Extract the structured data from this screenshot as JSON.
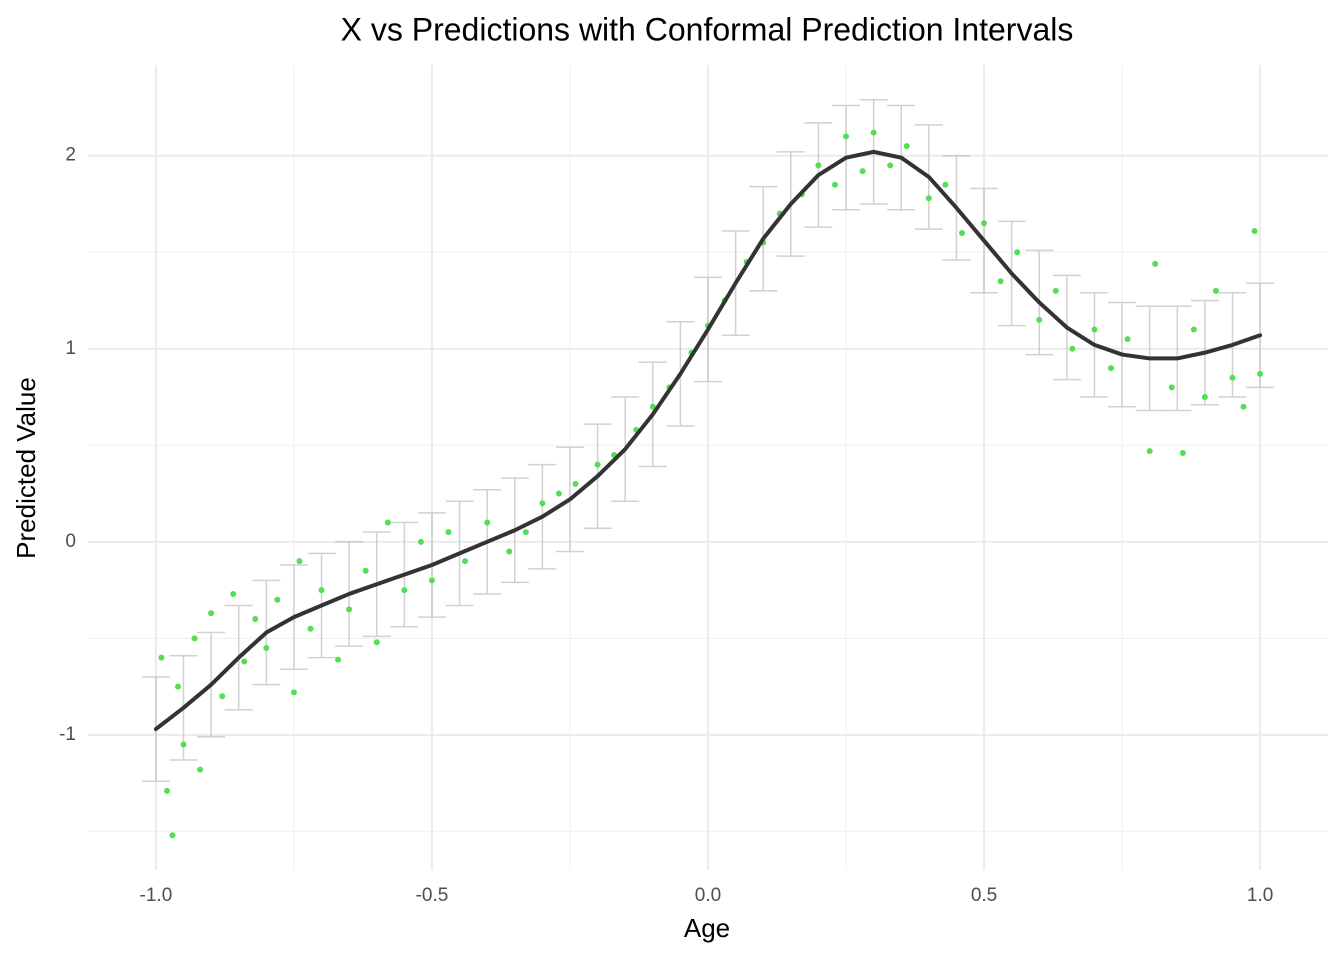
{
  "chart_data": {
    "type": "scatter",
    "title": "X vs Predictions with Conformal Prediction Intervals",
    "x_label": "Age",
    "y_label": "Predicted Value",
    "xlim": [
      -1.123,
      1.123
    ],
    "ylim": [
      -1.7,
      2.47
    ],
    "xticks": [
      {
        "value": -1,
        "label": "-1.0"
      },
      {
        "value": -0.5,
        "label": "-0.5"
      },
      {
        "value": 0,
        "label": "0.0"
      },
      {
        "value": 0.5,
        "label": "0.5"
      },
      {
        "value": 1,
        "label": "1.0"
      }
    ],
    "yticks": [
      -1,
      0,
      1,
      2
    ],
    "x_minor_grid": [
      -0.75,
      -0.25,
      0.25,
      0.75
    ],
    "y_minor_grid": [
      -1.5,
      -0.5,
      0.5,
      1.5
    ],
    "grid": true,
    "fit": {
      "color": "#333333",
      "interval_color": "#bdbdbd",
      "x": [
        -1,
        -0.95,
        -0.9,
        -0.85,
        -0.8,
        -0.75,
        -0.7,
        -0.65,
        -0.6,
        -0.55,
        -0.5,
        -0.45,
        -0.4,
        -0.35,
        -0.3,
        -0.25,
        -0.2,
        -0.15,
        -0.1,
        -0.05,
        0,
        0.05,
        0.1,
        0.15,
        0.2,
        0.25,
        0.3,
        0.35,
        0.4,
        0.45,
        0.5,
        0.55,
        0.6,
        0.65,
        0.7,
        0.75,
        0.8,
        0.85,
        0.9,
        0.95,
        1
      ],
      "values": [
        -0.97,
        -0.86,
        -0.74,
        -0.6,
        -0.47,
        -0.39,
        -0.33,
        -0.27,
        -0.22,
        -0.17,
        -0.12,
        -0.06,
        0,
        0.06,
        0.13,
        0.22,
        0.34,
        0.48,
        0.66,
        0.87,
        1.1,
        1.34,
        1.57,
        1.75,
        1.9,
        1.99,
        2.02,
        1.99,
        1.89,
        1.73,
        1.56,
        1.39,
        1.24,
        1.11,
        1.02,
        0.97,
        0.95,
        0.95,
        0.98,
        1.02,
        1.07
      ],
      "lower": [
        -1.24,
        -1.13,
        -1.01,
        -0.87,
        -0.74,
        -0.66,
        -0.6,
        -0.54,
        -0.49,
        -0.44,
        -0.39,
        -0.33,
        -0.27,
        -0.21,
        -0.14,
        -0.05,
        0.07,
        0.21,
        0.39,
        0.6,
        0.83,
        1.07,
        1.3,
        1.48,
        1.63,
        1.72,
        1.75,
        1.72,
        1.62,
        1.46,
        1.29,
        1.12,
        0.97,
        0.84,
        0.75,
        0.7,
        0.68,
        0.68,
        0.71,
        0.75,
        0.8
      ],
      "upper": [
        -0.7,
        -0.59,
        -0.47,
        -0.33,
        -0.2,
        -0.12,
        -0.06,
        0,
        0.05,
        0.1,
        0.15,
        0.21,
        0.27,
        0.33,
        0.4,
        0.49,
        0.61,
        0.75,
        0.93,
        1.14,
        1.37,
        1.61,
        1.84,
        2.02,
        2.17,
        2.26,
        2.29,
        2.26,
        2.16,
        2,
        1.83,
        1.66,
        1.51,
        1.38,
        1.29,
        1.24,
        1.22,
        1.22,
        1.25,
        1.29,
        1.34
      ]
    },
    "observed": {
      "color": "#55dd55",
      "x": [
        -0.99,
        -0.98,
        -0.97,
        -0.96,
        -0.95,
        -0.93,
        -0.92,
        -0.9,
        -0.88,
        -0.86,
        -0.84,
        -0.82,
        -0.8,
        -0.78,
        -0.75,
        -0.74,
        -0.72,
        -0.7,
        -0.67,
        -0.65,
        -0.62,
        -0.6,
        -0.58,
        -0.55,
        -0.52,
        -0.5,
        -0.47,
        -0.44,
        -0.4,
        -0.36,
        -0.33,
        -0.3,
        -0.27,
        -0.24,
        -0.2,
        -0.17,
        -0.13,
        -0.1,
        -0.07,
        -0.03,
        0,
        0.03,
        0.07,
        0.1,
        0.13,
        0.17,
        0.2,
        0.23,
        0.25,
        0.28,
        0.3,
        0.33,
        0.36,
        0.4,
        0.43,
        0.46,
        0.5,
        0.53,
        0.56,
        0.6,
        0.63,
        0.66,
        0.7,
        0.73,
        0.76,
        0.8,
        0.81,
        0.84,
        0.86,
        0.88,
        0.9,
        0.92,
        0.95,
        0.97,
        0.99,
        1
      ],
      "values": [
        -0.6,
        -1.29,
        -1.52,
        -0.75,
        -1.05,
        -0.5,
        -1.18,
        -0.37,
        -0.8,
        -0.27,
        -0.62,
        -0.4,
        -0.55,
        -0.3,
        -0.78,
        -0.1,
        -0.45,
        -0.25,
        -0.61,
        -0.35,
        -0.15,
        -0.52,
        0.1,
        -0.25,
        0,
        -0.2,
        0.05,
        -0.1,
        0.1,
        -0.05,
        0.05,
        0.2,
        0.25,
        0.3,
        0.4,
        0.45,
        0.58,
        0.7,
        0.8,
        0.98,
        1.12,
        1.25,
        1.45,
        1.55,
        1.7,
        1.8,
        1.95,
        1.85,
        2.1,
        1.92,
        2.12,
        1.95,
        2.05,
        1.78,
        1.85,
        1.6,
        1.65,
        1.35,
        1.5,
        1.15,
        1.3,
        1,
        1.1,
        0.9,
        1.05,
        0.47,
        1.44,
        0.8,
        0.46,
        1.1,
        0.75,
        1.3,
        0.85,
        0.7,
        1.61,
        0.87
      ]
    }
  }
}
